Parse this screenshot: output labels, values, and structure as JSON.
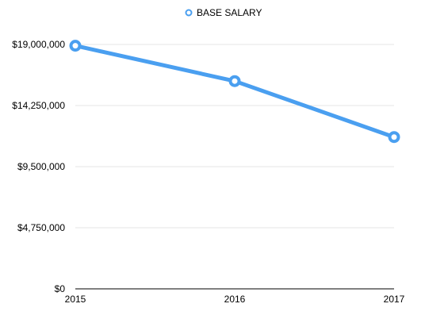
{
  "chart_data": {
    "type": "line",
    "categories": [
      "2015",
      "2016",
      "2017"
    ],
    "series": [
      {
        "name": "BASE SALARY",
        "values": [
          18900000,
          16150000,
          11800000
        ]
      }
    ],
    "ylim": [
      0,
      19000000
    ],
    "yticks": [
      0,
      4750000,
      9500000,
      14250000,
      19000000
    ],
    "ytick_labels": [
      "$0",
      "$4,750,000",
      "$9,500,000",
      "$14,250,000",
      "$19,000,000"
    ],
    "grid": true,
    "legend_position": "top-center",
    "colors": {
      "series": "#4a9ff0",
      "grid": "#e5e5e5",
      "axis": "#000000"
    }
  }
}
